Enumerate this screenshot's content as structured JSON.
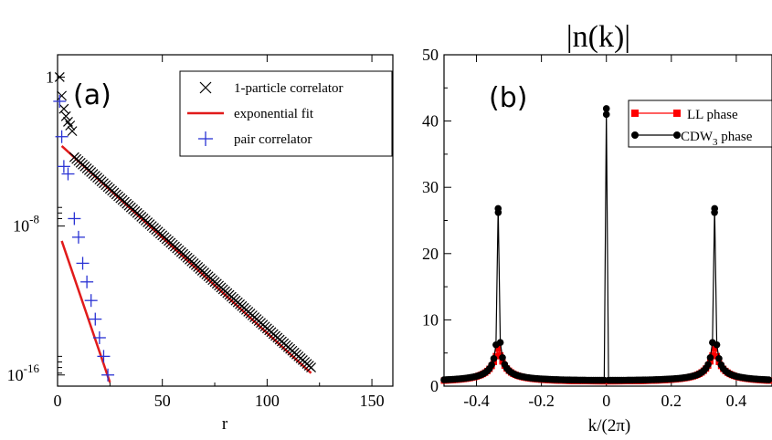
{
  "panels": [
    {
      "type": "scatter",
      "panel_label": "(a)",
      "title": "",
      "xlabel": "r",
      "ylabel": "",
      "xlim": [
        0,
        160
      ],
      "ylim_log10": [
        -16.6,
        1.2
      ],
      "y_scale": "log",
      "x_ticks": [
        "0",
        "50",
        "100",
        "150"
      ],
      "x_tick_values": [
        0,
        50,
        100,
        150
      ],
      "y_ticks": [
        {
          "value_log10": 0,
          "base": "1",
          "exp": ""
        },
        {
          "value_log10": -8,
          "base": "10",
          "exp": "-8"
        },
        {
          "value_log10": -16,
          "base": "10",
          "exp": "-16"
        }
      ],
      "legend_position": "top-right",
      "series": [
        {
          "name": "1-particle correlator",
          "marker": "x",
          "color": "#000000",
          "points_x_range": [
            1,
            121
          ],
          "note_form": "log10 y = -0.1*x - 3.5 for x>=8; near-0 at small r",
          "small_r_log10": [
            [
              1,
              0
            ],
            [
              2,
              -1
            ],
            [
              3,
              -1.7
            ],
            [
              4,
              -2.1
            ],
            [
              5,
              -2.4
            ],
            [
              6,
              -2.6
            ],
            [
              7,
              -2.9
            ]
          ],
          "slope": -0.1,
          "intercept": -3.5,
          "x_end": 121
        },
        {
          "name": "exponential fit",
          "marker": "line",
          "color": "#e11b1b",
          "segments": [
            {
              "x": [
                2,
                121
              ],
              "log10y": [
                -3.7,
                -15.9
              ]
            },
            {
              "x": [
                2,
                25
              ],
              "log10y": [
                -8.8,
                -16.4
              ]
            }
          ]
        },
        {
          "name": "pair correlator",
          "marker": "+",
          "color": "#2a33d4",
          "points": [
            [
              1,
              -1.3
            ],
            [
              2,
              -3.2
            ],
            [
              3,
              -4.8
            ],
            [
              5,
              -5.2
            ],
            [
              8,
              -7.6
            ],
            [
              10,
              -8.6
            ],
            [
              12,
              -10.0
            ],
            [
              14,
              -11.0
            ],
            [
              16,
              -12.0
            ],
            [
              18,
              -13.0
            ],
            [
              20,
              -14.0
            ],
            [
              22,
              -15.0
            ],
            [
              24,
              -16.0
            ]
          ]
        }
      ]
    },
    {
      "type": "line",
      "panel_label": "(b)",
      "title": "|n(k)|",
      "xlabel": "k/(2π)",
      "ylabel": "",
      "xlim": [
        -0.5,
        0.5
      ],
      "ylim": [
        0,
        50
      ],
      "x_ticks": [
        "-0.4",
        "-0.2",
        "0",
        "0.2",
        "0.4"
      ],
      "x_tick_values": [
        -0.4,
        -0.2,
        0,
        0.2,
        0.4
      ],
      "y_ticks": [
        "0",
        "10",
        "20",
        "30",
        "40",
        "50"
      ],
      "y_tick_values": [
        0,
        10,
        20,
        30,
        40,
        50
      ],
      "legend_position": "top-right",
      "series": [
        {
          "name": "LL phase",
          "color": "#ff0000",
          "marker": "square",
          "peaks": [
            {
              "x": -0.333,
              "y": 5.2
            },
            {
              "x": 0.333,
              "y": 5.2
            }
          ],
          "baseline": 0.4
        },
        {
          "name": "CDW",
          "name_sub": "3",
          "name_suffix": " phase",
          "color": "#000000",
          "marker": "circle",
          "peaks": [
            {
              "x": -0.333,
              "y": 26.2
            },
            {
              "x": 0,
              "y": 41.0
            },
            {
              "x": 0.333,
              "y": 26.2
            }
          ],
          "baseline": 0.5
        }
      ]
    }
  ]
}
